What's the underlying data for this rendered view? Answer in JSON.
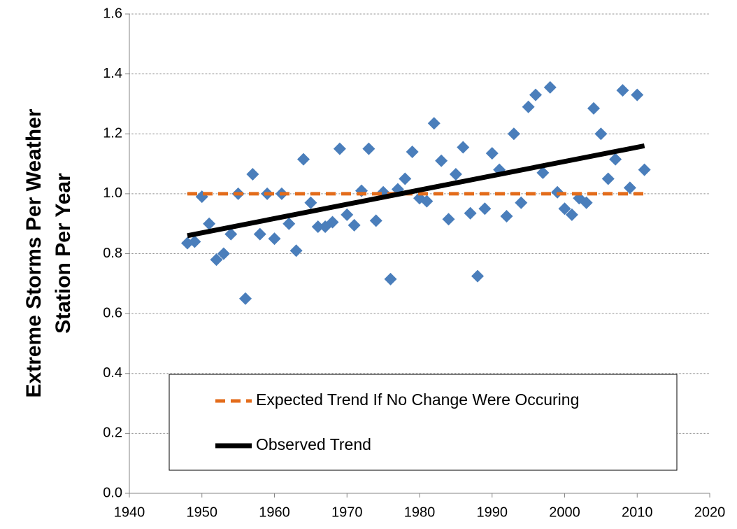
{
  "chart_data": {
    "type": "scatter",
    "ylabel": [
      "Extreme Storms Per Weather",
      "Station Per Year"
    ],
    "xlim": [
      1940,
      2020
    ],
    "xticks": [
      1940,
      1950,
      1960,
      1970,
      1980,
      1990,
      2000,
      2010,
      2020
    ],
    "ylim": [
      0,
      1.6
    ],
    "yticks": [
      {
        "value": 0,
        "label": "0.0"
      },
      0.2,
      0.4,
      0.6,
      0.8,
      {
        "value": 1,
        "label": "1.0"
      },
      1.2,
      1.4,
      1.6
    ],
    "grid": true,
    "marker": "diamond",
    "color": "#4a7ebb",
    "x": [
      1948,
      1949,
      1950,
      1951,
      1952,
      1953,
      1954,
      1955,
      1956,
      1957,
      1958,
      1959,
      1960,
      1961,
      1962,
      1963,
      1964,
      1965,
      1966,
      1967,
      1968,
      1969,
      1970,
      1971,
      1972,
      1973,
      1974,
      1975,
      1976,
      1977,
      1978,
      1979,
      1980,
      1981,
      1982,
      1983,
      1984,
      1985,
      1986,
      1987,
      1988,
      1989,
      1990,
      1991,
      1992,
      1993,
      1994,
      1995,
      1996,
      1997,
      1998,
      1999,
      2000,
      2001,
      2002,
      2003,
      2004,
      2005,
      2006,
      2007,
      2008,
      2009,
      2010,
      2011
    ],
    "values": [
      0.835,
      0.84,
      0.99,
      0.9,
      0.78,
      0.8,
      0.865,
      1.0,
      0.65,
      1.065,
      0.865,
      1.0,
      0.85,
      1.0,
      0.9,
      0.81,
      1.115,
      0.97,
      0.89,
      0.89,
      0.905,
      1.15,
      0.93,
      0.895,
      1.01,
      1.15,
      0.91,
      1.005,
      0.715,
      1.015,
      1.05,
      1.14,
      0.985,
      0.975,
      1.235,
      1.11,
      0.915,
      1.065,
      1.155,
      0.935,
      0.725,
      0.95,
      1.135,
      1.08,
      0.925,
      1.2,
      0.97,
      1.29,
      1.33,
      1.07,
      1.355,
      1.005,
      0.95,
      0.93,
      0.985,
      0.97,
      1.285,
      1.2,
      1.05,
      1.115,
      1.345,
      1.02,
      1.33,
      1.08
    ],
    "series": [
      {
        "name": "Expected Trend If No Change Were Occuring",
        "color": "#e36c1b",
        "dashed": true,
        "x": [
          1948,
          2011
        ],
        "values": [
          1.0,
          1.0
        ]
      },
      {
        "name": "Observed Trend",
        "color": "#000000",
        "dashed": false,
        "x": [
          1948,
          2011
        ],
        "values": [
          0.86,
          1.16
        ]
      }
    ],
    "legend": "lower center"
  }
}
